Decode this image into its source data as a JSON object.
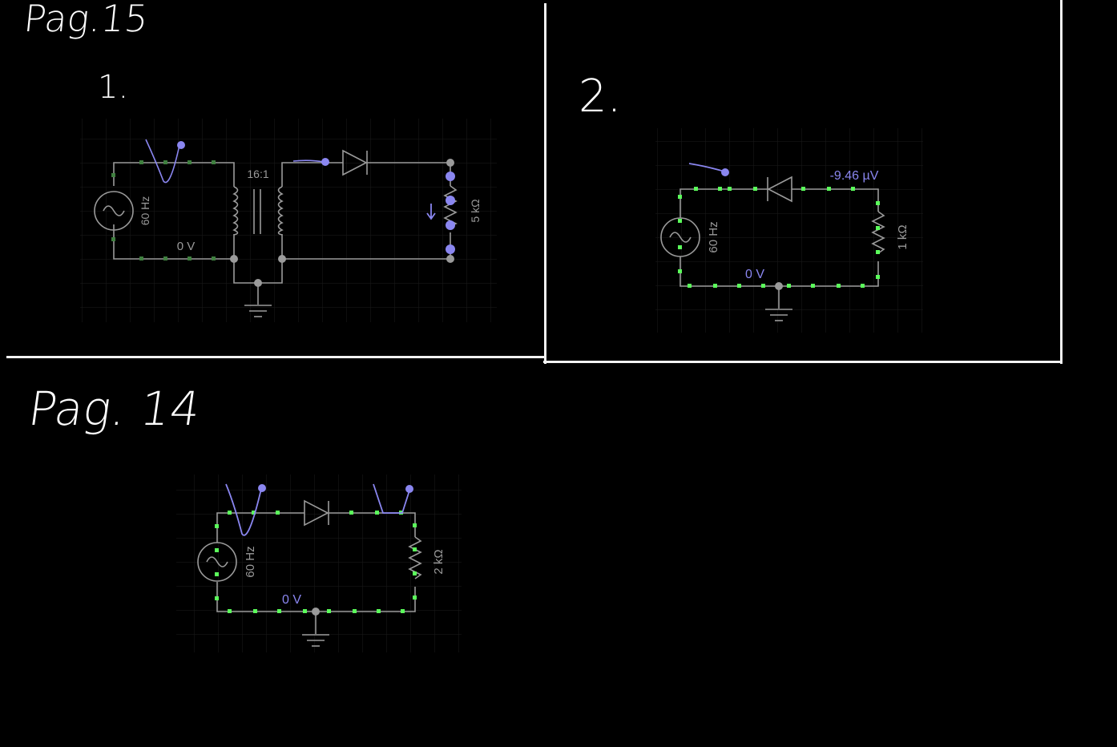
{
  "notes": {
    "page_15": "Pag.15",
    "item_1": "1.",
    "item_2": "2.",
    "page_14": "Pag. 14"
  },
  "circuit1": {
    "source_freq": "60 Hz",
    "transformer_ratio": "16:1",
    "ground_voltage": "0 V",
    "resistor": "5 kΩ"
  },
  "circuit2": {
    "source_freq": "60 Hz",
    "resistor": "1 kΩ",
    "ground_voltage": "0 V",
    "probe_voltage": "-9.46 µV"
  },
  "circuit3": {
    "source_freq": "60 Hz",
    "resistor": "2 kΩ",
    "ground_voltage": "0 V"
  },
  "colors": {
    "wire": "#9a9a9a",
    "node_green": "#5bff5b",
    "node_dim_green": "#3f7f3f",
    "probe_blue": "#8a86f0",
    "grid": "#1b1b1b",
    "ink": "#ffffff"
  }
}
